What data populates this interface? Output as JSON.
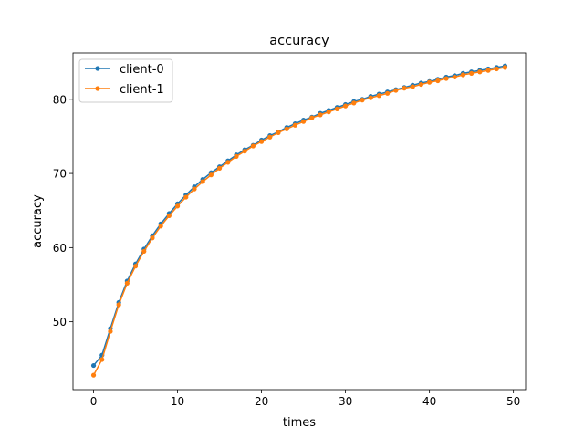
{
  "chart_data": {
    "type": "line",
    "title": "accuracy",
    "xlabel": "times",
    "ylabel": "accuracy",
    "xlim": [
      -2.45,
      51.45
    ],
    "ylim": [
      40.85,
      86.25
    ],
    "xticks": [
      0,
      10,
      20,
      30,
      40,
      50
    ],
    "yticks": [
      50,
      60,
      70,
      80
    ],
    "grid": false,
    "legend_position": "upper-left",
    "x": [
      0,
      1,
      2,
      3,
      4,
      5,
      6,
      7,
      8,
      9,
      10,
      11,
      12,
      13,
      14,
      15,
      16,
      17,
      18,
      19,
      20,
      21,
      22,
      23,
      24,
      25,
      26,
      27,
      28,
      29,
      30,
      31,
      32,
      33,
      34,
      35,
      36,
      37,
      38,
      39,
      40,
      41,
      42,
      43,
      44,
      45,
      46,
      47,
      48,
      49
    ],
    "series": [
      {
        "name": "client-0",
        "color": "#1f77b4",
        "values": [
          44.1,
          45.5,
          49.1,
          52.6,
          55.5,
          57.8,
          59.8,
          61.6,
          63.2,
          64.6,
          65.9,
          67.1,
          68.2,
          69.2,
          70.1,
          70.9,
          71.7,
          72.5,
          73.2,
          73.8,
          74.5,
          75.1,
          75.6,
          76.2,
          76.7,
          77.2,
          77.6,
          78.1,
          78.5,
          78.9,
          79.3,
          79.7,
          80.0,
          80.4,
          80.7,
          81.0,
          81.3,
          81.6,
          81.9,
          82.2,
          82.4,
          82.7,
          83.0,
          83.2,
          83.5,
          83.7,
          83.9,
          84.1,
          84.3,
          84.5
        ]
      },
      {
        "name": "client-1",
        "color": "#ff7f0e",
        "values": [
          42.8,
          44.9,
          48.7,
          52.3,
          55.2,
          57.5,
          59.5,
          61.3,
          62.9,
          64.3,
          65.6,
          66.8,
          67.9,
          68.9,
          69.8,
          70.7,
          71.5,
          72.3,
          73.0,
          73.7,
          74.3,
          74.9,
          75.5,
          76.0,
          76.5,
          77.0,
          77.5,
          77.9,
          78.3,
          78.7,
          79.1,
          79.5,
          79.9,
          80.2,
          80.5,
          80.8,
          81.2,
          81.5,
          81.7,
          82.0,
          82.3,
          82.5,
          82.8,
          83.0,
          83.3,
          83.5,
          83.7,
          83.9,
          84.1,
          84.3
        ]
      }
    ]
  }
}
